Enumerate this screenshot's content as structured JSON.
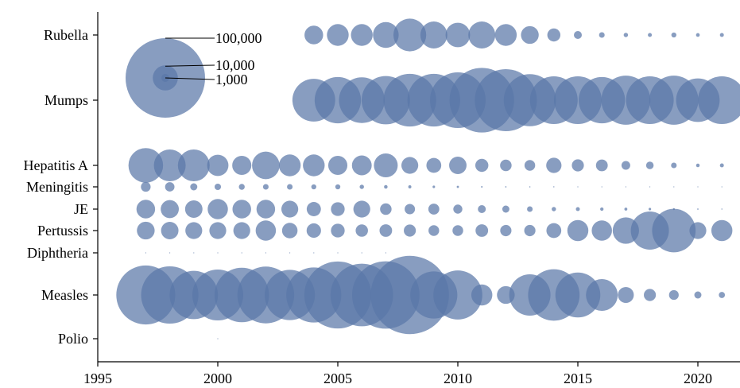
{
  "chart_data": {
    "type": "scatter",
    "title": "",
    "xlabel": "",
    "ylabel": "",
    "xlim": [
      1995,
      2022
    ],
    "x_ticks": [
      "1995",
      "2000",
      "2005",
      "2010",
      "2015",
      "2020"
    ],
    "categories": [
      "Rubella",
      "Mumps",
      "Hepatitis A",
      "Meningitis",
      "JE",
      "Pertussis",
      "Diphtheria",
      "Measles",
      "Polio"
    ],
    "years": [
      1997,
      1998,
      1999,
      2000,
      2001,
      2002,
      2003,
      2004,
      2005,
      2006,
      2007,
      2008,
      2009,
      2010,
      2011,
      2012,
      2013,
      2014,
      2015,
      2016,
      2017,
      2018,
      2019,
      2020,
      2021
    ],
    "bubble_color": "#5a77a8",
    "grid": false,
    "size_legend": {
      "position": "top-left",
      "entries": [
        {
          "label": "100,000",
          "value": 100000
        },
        {
          "label": "10,000",
          "value": 10000
        },
        {
          "label": "1,000",
          "value": 1000
        }
      ]
    },
    "series": [
      {
        "name": "Rubella",
        "values": [
          null,
          null,
          null,
          null,
          null,
          null,
          null,
          5500,
          7500,
          7500,
          10500,
          17000,
          11500,
          9500,
          11500,
          7500,
          5000,
          2700,
          1000,
          500,
          300,
          250,
          400,
          220,
          250
        ]
      },
      {
        "name": "Mumps",
        "values": [
          null,
          null,
          null,
          null,
          null,
          null,
          null,
          29000,
          34000,
          33000,
          37000,
          44000,
          44000,
          49000,
          66000,
          61000,
          43000,
          36000,
          36000,
          34000,
          38000,
          36000,
          38000,
          30000,
          36000
        ]
      },
      {
        "name": "Hepatitis A",
        "values": [
          19000,
          16000,
          16000,
          7200,
          5800,
          12000,
          7500,
          7500,
          5800,
          6200,
          9000,
          4500,
          3500,
          4800,
          2700,
          2100,
          1800,
          3700,
          2300,
          2200,
          1200,
          900,
          500,
          200,
          250
        ]
      },
      {
        "name": "Meningitis",
        "values": [
          1500,
          1400,
          800,
          650,
          550,
          500,
          500,
          400,
          400,
          300,
          200,
          150,
          100,
          80,
          40,
          30,
          25,
          20,
          15,
          10,
          8,
          6,
          4,
          3,
          2
        ]
      },
      {
        "name": "JE",
        "values": [
          5500,
          5200,
          4800,
          6500,
          5500,
          5500,
          4500,
          3200,
          3000,
          4500,
          2100,
          1700,
          1900,
          1300,
          1000,
          800,
          500,
          300,
          250,
          180,
          140,
          100,
          60,
          30,
          20
        ]
      },
      {
        "name": "Pertussis",
        "values": [
          5000,
          4800,
          4500,
          4500,
          4500,
          6500,
          3800,
          3300,
          3000,
          2400,
          2500,
          2300,
          1800,
          1800,
          2500,
          2000,
          2000,
          3500,
          7000,
          6500,
          11000,
          23000,
          30000,
          4500,
          7000
        ]
      },
      {
        "name": "Diphtheria",
        "values": [
          5,
          4,
          3,
          3,
          2,
          1,
          1,
          1,
          1,
          1,
          1,
          null,
          null,
          null,
          null,
          null,
          null,
          null,
          null,
          null,
          null,
          null,
          null,
          null,
          null
        ]
      },
      {
        "name": "Measles",
        "values": [
          55000,
          52000,
          37000,
          41000,
          47000,
          51000,
          40000,
          48000,
          71000,
          62000,
          72000,
          97000,
          35000,
          38000,
          7000,
          5000,
          27000,
          42000,
          32000,
          16000,
          4000,
          2300,
          1500,
          800,
          600
        ]
      },
      {
        "name": "Polio",
        "values": [
          null,
          null,
          null,
          1,
          null,
          null,
          null,
          null,
          null,
          null,
          null,
          null,
          null,
          null,
          null,
          null,
          null,
          null,
          null,
          null,
          null,
          null,
          null,
          null,
          null
        ]
      }
    ]
  }
}
